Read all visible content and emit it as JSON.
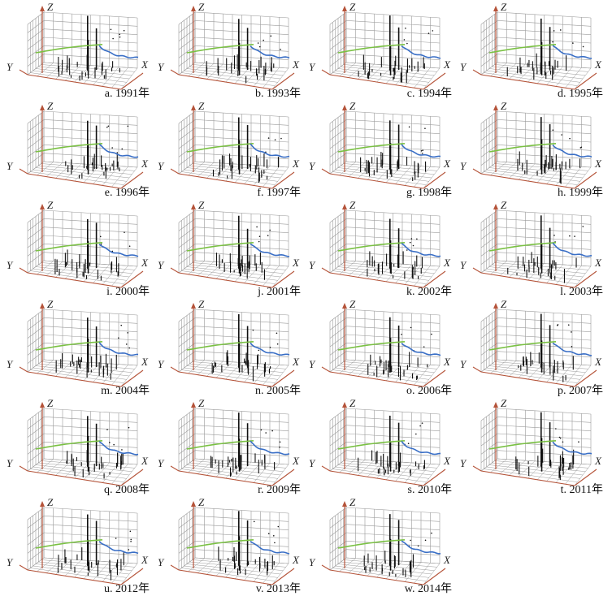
{
  "figure": {
    "axis_labels": {
      "x": "X",
      "y": "Y",
      "z": "Z"
    },
    "colors": {
      "grid": "#9a9a9a",
      "floor_axis": "#b5543a",
      "z_axis": "#b5543a",
      "y_projection": "#7ac143",
      "x_projection": "#3a6fc6",
      "bars": "#111111"
    }
  },
  "chart_data": [
    {
      "type": "3d-bar",
      "label": "a. 1991年"
    },
    {
      "type": "3d-bar",
      "label": "b. 1993年"
    },
    {
      "type": "3d-bar",
      "label": "c. 1994年"
    },
    {
      "type": "3d-bar",
      "label": "d. 1995年"
    },
    {
      "type": "3d-bar",
      "label": "e. 1996年"
    },
    {
      "type": "3d-bar",
      "label": "f. 1997年"
    },
    {
      "type": "3d-bar",
      "label": "g. 1998年"
    },
    {
      "type": "3d-bar",
      "label": "h. 1999年"
    },
    {
      "type": "3d-bar",
      "label": "i. 2000年"
    },
    {
      "type": "3d-bar",
      "label": "j. 2001年"
    },
    {
      "type": "3d-bar",
      "label": "k. 2002年"
    },
    {
      "type": "3d-bar",
      "label": "l. 2003年"
    },
    {
      "type": "3d-bar",
      "label": "m. 2004年"
    },
    {
      "type": "3d-bar",
      "label": "n. 2005年"
    },
    {
      "type": "3d-bar",
      "label": "o. 2006年"
    },
    {
      "type": "3d-bar",
      "label": "p. 2007年"
    },
    {
      "type": "3d-bar",
      "label": "q. 2008年"
    },
    {
      "type": "3d-bar",
      "label": "r. 2009年"
    },
    {
      "type": "3d-bar",
      "label": "s. 2010年"
    },
    {
      "type": "3d-bar",
      "label": "t. 2011年"
    },
    {
      "type": "3d-bar",
      "label": "u. 2012年"
    },
    {
      "type": "3d-bar",
      "label": "v. 2013年"
    },
    {
      "type": "3d-bar",
      "label": "w. 2014年"
    }
  ]
}
